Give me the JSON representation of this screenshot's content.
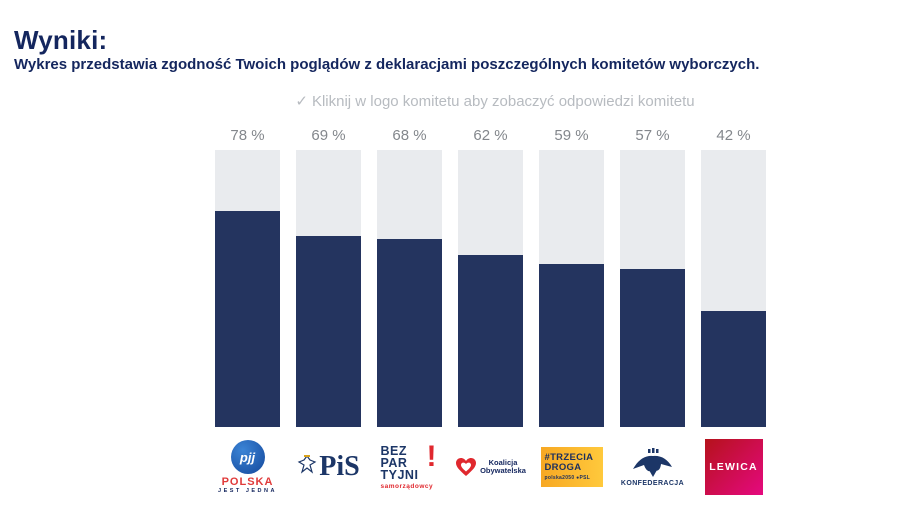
{
  "page": {
    "title": "Wyniki:",
    "subtitle": "Wykres przedstawia zgodność Twoich poglądów z deklaracjami poszczególnych komitetów wyborczych.",
    "hint_icon": "✓",
    "hint": "Kliknij w logo komitetu aby zobaczyć odpowiedzi komitetu"
  },
  "colors": {
    "bar_fill": "#24345f",
    "bar_track": "#e9ebee",
    "title_navy": "#14265e",
    "hint_gray": "#b7bbc0",
    "value_gray": "#83878c"
  },
  "chart_data": {
    "type": "bar",
    "categories": [
      "Polska Jest Jedna",
      "Prawo i Sprawiedliwość",
      "Bezpartyjni Samorządowcy",
      "Koalicja Obywatelska",
      "Trzecia Droga",
      "Konfederacja",
      "Lewica"
    ],
    "values": [
      78,
      69,
      68,
      62,
      59,
      57,
      42
    ],
    "value_labels": [
      "78 %",
      "69 %",
      "68 %",
      "62 %",
      "59 %",
      "57 %",
      "42 %"
    ],
    "title": "",
    "xlabel": "",
    "ylabel": "",
    "ylim": [
      0,
      100
    ],
    "grid": false,
    "legend": "none"
  },
  "logos": {
    "pjj": {
      "monogram": "pjj",
      "line1": "POLSKA",
      "line2": "JEST JEDNA"
    },
    "pis": {
      "text": "PiS"
    },
    "bezpartyjni": {
      "line1": "BEZ",
      "line2": "PAR",
      "line3": "TYJNI",
      "bang": "!",
      "sub": "samorządowcy"
    },
    "ko": {
      "line1": "Koalicja",
      "line2": "Obywatelska"
    },
    "trzecia_droga": {
      "line1": "#TRZECIA",
      "line2": "DROGA",
      "sub": "polska2050 ●PSL"
    },
    "konfederacja": {
      "text": "KONFEDERACJA"
    },
    "lewica": {
      "text": "LEWICA"
    }
  }
}
